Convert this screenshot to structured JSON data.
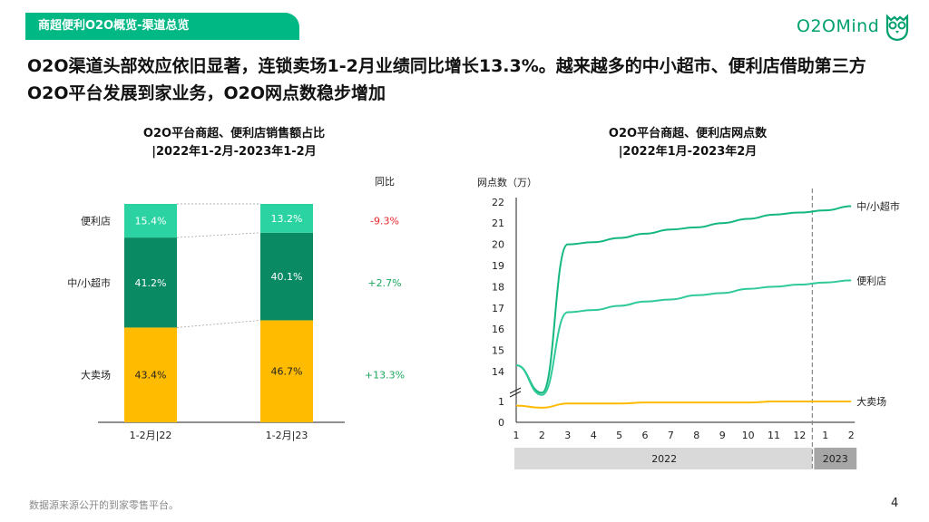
{
  "header": {
    "tab_title": "商超便利O2O概览-渠道总览",
    "logo_text": "O2OMind",
    "headline": "O2O渠道头部效应依旧显著，连锁卖场1-2月业绩同比增长13.3%。越来越多的中小超市、便利店借助第三方O2O平台发展到家业务，O2O网点数稳步增加"
  },
  "colors": {
    "green": "#00b884",
    "dark_green": "#0a8a62",
    "light_green": "#2bd3a2",
    "yellow": "#ffbb00",
    "red": "#e8262b",
    "pos_green": "#1aa75d"
  },
  "chart_data": [
    {
      "type": "bar",
      "stacked": true,
      "title_line1": "O2O平台商超、便利店销售额占比",
      "title_line2": "|2022年1-2月-2023年1-2月",
      "categories": [
        "1-2月|22",
        "1-2月|23"
      ],
      "series": [
        {
          "name": "大卖场",
          "values": [
            43.4,
            46.7
          ],
          "labels": [
            "43.4%",
            "46.7%"
          ],
          "yoy": "+13.3%"
        },
        {
          "name": "中/小超市",
          "values": [
            41.2,
            40.1
          ],
          "labels": [
            "41.2%",
            "40.1%"
          ],
          "yoy": "+2.7%"
        },
        {
          "name": "便利店",
          "values": [
            15.4,
            13.2
          ],
          "labels": [
            "15.4%",
            "13.2%"
          ],
          "yoy": "-9.3%"
        }
      ],
      "yoy_header": "同比",
      "ylim": [
        0,
        100
      ]
    },
    {
      "type": "line",
      "title_line1": "O2O平台商超、便利店网点数",
      "title_line2": "|2022年1月-2023年2月",
      "ylabel": "网点数（万）",
      "x_labels": [
        "1",
        "2",
        "3",
        "4",
        "5",
        "6",
        "7",
        "8",
        "9",
        "10",
        "11",
        "12",
        "1",
        "2"
      ],
      "year_groups": [
        {
          "label": "2022",
          "from": 1,
          "to": 12
        },
        {
          "label": "2023",
          "from": 13,
          "to": 14
        }
      ],
      "y_ticks": [
        "0",
        "1",
        "14",
        "15",
        "16",
        "17",
        "18",
        "19",
        "20",
        "21",
        "22"
      ],
      "axis_break": true,
      "divider_after_index": 12,
      "series": [
        {
          "name": "中/小超市",
          "values": [
            14.3,
            13.0,
            20.0,
            20.1,
            20.3,
            20.5,
            20.7,
            20.8,
            21.0,
            21.2,
            21.4,
            21.5,
            21.6,
            21.8
          ]
        },
        {
          "name": "便利店",
          "values": [
            14.3,
            12.9,
            16.8,
            16.9,
            17.1,
            17.3,
            17.4,
            17.6,
            17.7,
            17.9,
            18.0,
            18.1,
            18.2,
            18.3
          ]
        },
        {
          "name": "大卖场",
          "values": [
            0.8,
            0.7,
            0.9,
            0.9,
            0.9,
            0.95,
            0.95,
            0.95,
            0.95,
            0.95,
            1.0,
            1.0,
            1.0,
            1.0
          ]
        }
      ]
    }
  ],
  "footer": {
    "source": "数据源来源公开的到家零售平台。",
    "page": "4"
  }
}
